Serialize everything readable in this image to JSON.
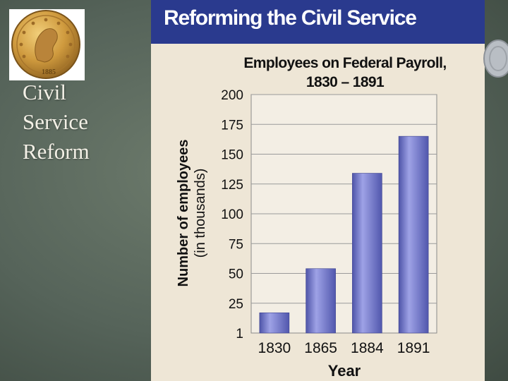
{
  "slide": {
    "title_lines": [
      "Civil",
      "Service",
      "Reform"
    ],
    "coin_year": "1885"
  },
  "panel": {
    "header": "Reforming the Civil Service"
  },
  "colors": {
    "header_bg": "#2a3a8e",
    "panel_bg": "#eee6d6",
    "bar": "#6f73c4",
    "slide_bg": "#5e6b5f"
  },
  "chart_data": {
    "type": "bar",
    "title_lines": [
      "Employees on Federal Payroll,",
      "1830 – 1891"
    ],
    "categories": [
      "1830",
      "1865",
      "1884",
      "1891"
    ],
    "values": [
      17,
      54,
      134,
      165
    ],
    "ylabel": "Number of employees",
    "ylabel_sub": "(in thousands)",
    "xlabel": "Year",
    "y_ticks": [
      1,
      25,
      50,
      75,
      100,
      125,
      150,
      175,
      200
    ],
    "y_tick_labels": [
      "1",
      "25",
      "50",
      "75",
      "100",
      "125",
      "150",
      "175",
      "200"
    ],
    "ylim": [
      0,
      200
    ],
    "grid": true
  }
}
